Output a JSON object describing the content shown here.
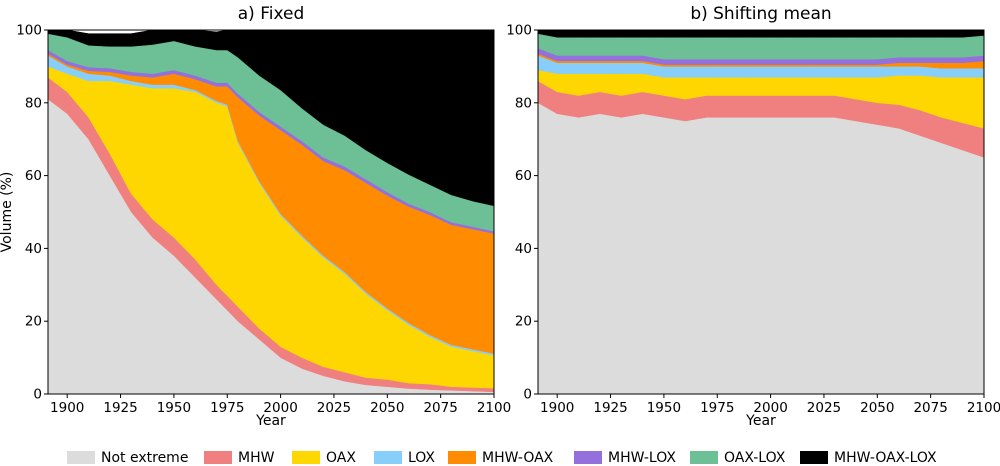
{
  "colors": {
    "Not extreme": "#dcdcdc",
    "MHW": "#f08080",
    "OAX": "#ffd700",
    "LOX": "#87cefa",
    "MHW-OAX": "#ff8c00",
    "MHW-LOX": "#9370db",
    "OAX-LOX": "#6dbf96",
    "MHW-OAX-LOX": "#000000"
  },
  "legend": [
    "Not extreme",
    "MHW",
    "OAX",
    "LOX",
    "MHW-OAX",
    "MHW-LOX",
    "OAX-LOX",
    "MHW-OAX-LOX"
  ],
  "chart_data": [
    {
      "type": "area",
      "stacked": true,
      "title": "a) Fixed",
      "xlabel": "Year",
      "ylabel": "Volume (%)",
      "xlim": [
        1891,
        2100
      ],
      "ylim": [
        0,
        100
      ],
      "xticks": [
        1900,
        1925,
        1950,
        1975,
        2000,
        2025,
        2050,
        2075,
        2100
      ],
      "yticks": [
        0,
        20,
        40,
        60,
        80,
        100
      ],
      "x": [
        1891,
        1900,
        1910,
        1920,
        1930,
        1940,
        1950,
        1960,
        1970,
        1975,
        1980,
        1990,
        2000,
        2010,
        2020,
        2030,
        2040,
        2050,
        2060,
        2070,
        2080,
        2090,
        2100
      ],
      "series": [
        {
          "name": "Not extreme",
          "values": [
            81,
            77,
            70,
            60,
            50,
            43,
            38,
            32,
            26,
            23,
            20,
            15,
            10,
            7,
            5,
            3.5,
            2.5,
            2,
            1.5,
            1.2,
            1,
            0.8,
            0.6
          ]
        },
        {
          "name": "MHW",
          "values": [
            6,
            6,
            6,
            6,
            5,
            5,
            5,
            5,
            4,
            4,
            4,
            3,
            3,
            3,
            2.5,
            2.5,
            2,
            2,
            1.5,
            1.5,
            1,
            1,
            1
          ]
        },
        {
          "name": "OAX",
          "values": [
            3,
            5,
            10,
            20,
            30,
            36,
            41,
            46,
            50,
            52,
            45,
            40,
            36,
            33,
            30,
            27,
            23,
            19,
            16,
            13,
            11,
            10,
            9
          ]
        },
        {
          "name": "LOX",
          "values": [
            3,
            2,
            2,
            1.5,
            1,
            1,
            1,
            0.5,
            0.5,
            0.5,
            0.5,
            0.5,
            0.5,
            0.5,
            0.5,
            0.5,
            0.5,
            0.5,
            0.5,
            0.5,
            0.5,
            0.5,
            0.5
          ]
        },
        {
          "name": "MHW-OAX",
          "values": [
            0.5,
            0.5,
            0.8,
            1,
            1.5,
            2,
            3,
            3,
            4,
            5,
            12,
            18,
            23,
            25,
            26,
            28,
            30,
            31,
            32,
            33,
            33,
            33,
            33
          ]
        },
        {
          "name": "MHW-LOX",
          "values": [
            1,
            1,
            1,
            1,
            1,
            1,
            1,
            1,
            1,
            1,
            1,
            1,
            1,
            1,
            1,
            1,
            1,
            1,
            0.8,
            0.8,
            0.7,
            0.7,
            0.6
          ]
        },
        {
          "name": "OAX-LOX",
          "values": [
            4.5,
            6.5,
            6,
            6,
            7,
            8,
            8,
            8,
            9,
            9,
            10,
            10,
            10,
            9,
            9,
            8.5,
            8,
            8,
            8,
            7.5,
            7.5,
            7,
            7
          ]
        },
        {
          "name": "MHW-OAX-LOX",
          "values": [
            1,
            2,
            3.2,
            3.5,
            3.5,
            4,
            3,
            4.5,
            5,
            5.5,
            7.5,
            12.5,
            16.5,
            21.5,
            26,
            29,
            33,
            36.5,
            39.7,
            42.5,
            45.3,
            47,
            48.3
          ]
        }
      ]
    },
    {
      "type": "area",
      "stacked": true,
      "title": "b) Shifting mean",
      "xlabel": "Year",
      "ylabel": "",
      "xlim": [
        1891,
        2100
      ],
      "ylim": [
        0,
        100
      ],
      "xticks": [
        1900,
        1925,
        1950,
        1975,
        2000,
        2025,
        2050,
        2075,
        2100
      ],
      "yticks": [
        0,
        20,
        40,
        60,
        80,
        100
      ],
      "x": [
        1891,
        1900,
        1910,
        1920,
        1930,
        1940,
        1950,
        1960,
        1970,
        1975,
        1980,
        1990,
        2000,
        2010,
        2020,
        2030,
        2040,
        2050,
        2060,
        2070,
        2080,
        2090,
        2100
      ],
      "series": [
        {
          "name": "Not extreme",
          "values": [
            80,
            77,
            76,
            77,
            76,
            77,
            76,
            75,
            76,
            76,
            76,
            76,
            76,
            76,
            76,
            76,
            75,
            74,
            73,
            71,
            69,
            67,
            65
          ]
        },
        {
          "name": "MHW",
          "values": [
            6,
            6,
            6,
            6,
            6,
            6,
            6,
            6,
            6,
            6,
            6,
            6,
            6,
            6,
            6,
            6,
            6,
            6,
            6.5,
            7,
            7,
            7.5,
            8
          ]
        },
        {
          "name": "OAX",
          "values": [
            3,
            5,
            6,
            5,
            6,
            5,
            5,
            6,
            5,
            5,
            5,
            5,
            5,
            5,
            5,
            5,
            6,
            7,
            8,
            9.5,
            11,
            12.5,
            14
          ]
        },
        {
          "name": "LOX",
          "values": [
            4,
            3,
            3,
            3,
            3,
            3,
            3,
            3,
            3,
            3,
            3,
            3,
            3,
            3,
            3,
            3,
            3,
            3,
            2.5,
            2.5,
            2.5,
            2.5,
            2.5
          ]
        },
        {
          "name": "MHW-OAX",
          "values": [
            0.5,
            0.5,
            0.5,
            0.5,
            0.5,
            0.5,
            0.5,
            0.5,
            0.5,
            0.5,
            0.5,
            0.5,
            0.5,
            0.5,
            0.5,
            0.5,
            0.5,
            0.5,
            1,
            1,
            1.5,
            1.5,
            2
          ]
        },
        {
          "name": "MHW-LOX",
          "values": [
            1.5,
            1.5,
            1.5,
            1.5,
            1.5,
            1.5,
            1.5,
            1.5,
            1.5,
            1.5,
            1.5,
            1.5,
            1.5,
            1.5,
            1.5,
            1.5,
            1.5,
            1.5,
            1.5,
            1.5,
            1.5,
            1.5,
            1.5
          ]
        },
        {
          "name": "OAX-LOX",
          "values": [
            4,
            5,
            5,
            5,
            5,
            5,
            6,
            6,
            6,
            6,
            6,
            6,
            6,
            6,
            6,
            6,
            6,
            6,
            5.5,
            5.5,
            5.5,
            5.5,
            5.5
          ]
        },
        {
          "name": "MHW-OAX-LOX",
          "values": [
            1,
            2,
            2,
            2,
            2,
            2,
            2,
            2,
            2,
            2,
            2,
            2,
            2,
            2,
            2,
            2,
            2,
            2,
            2,
            2,
            2,
            2,
            2
          ]
        }
      ]
    }
  ]
}
